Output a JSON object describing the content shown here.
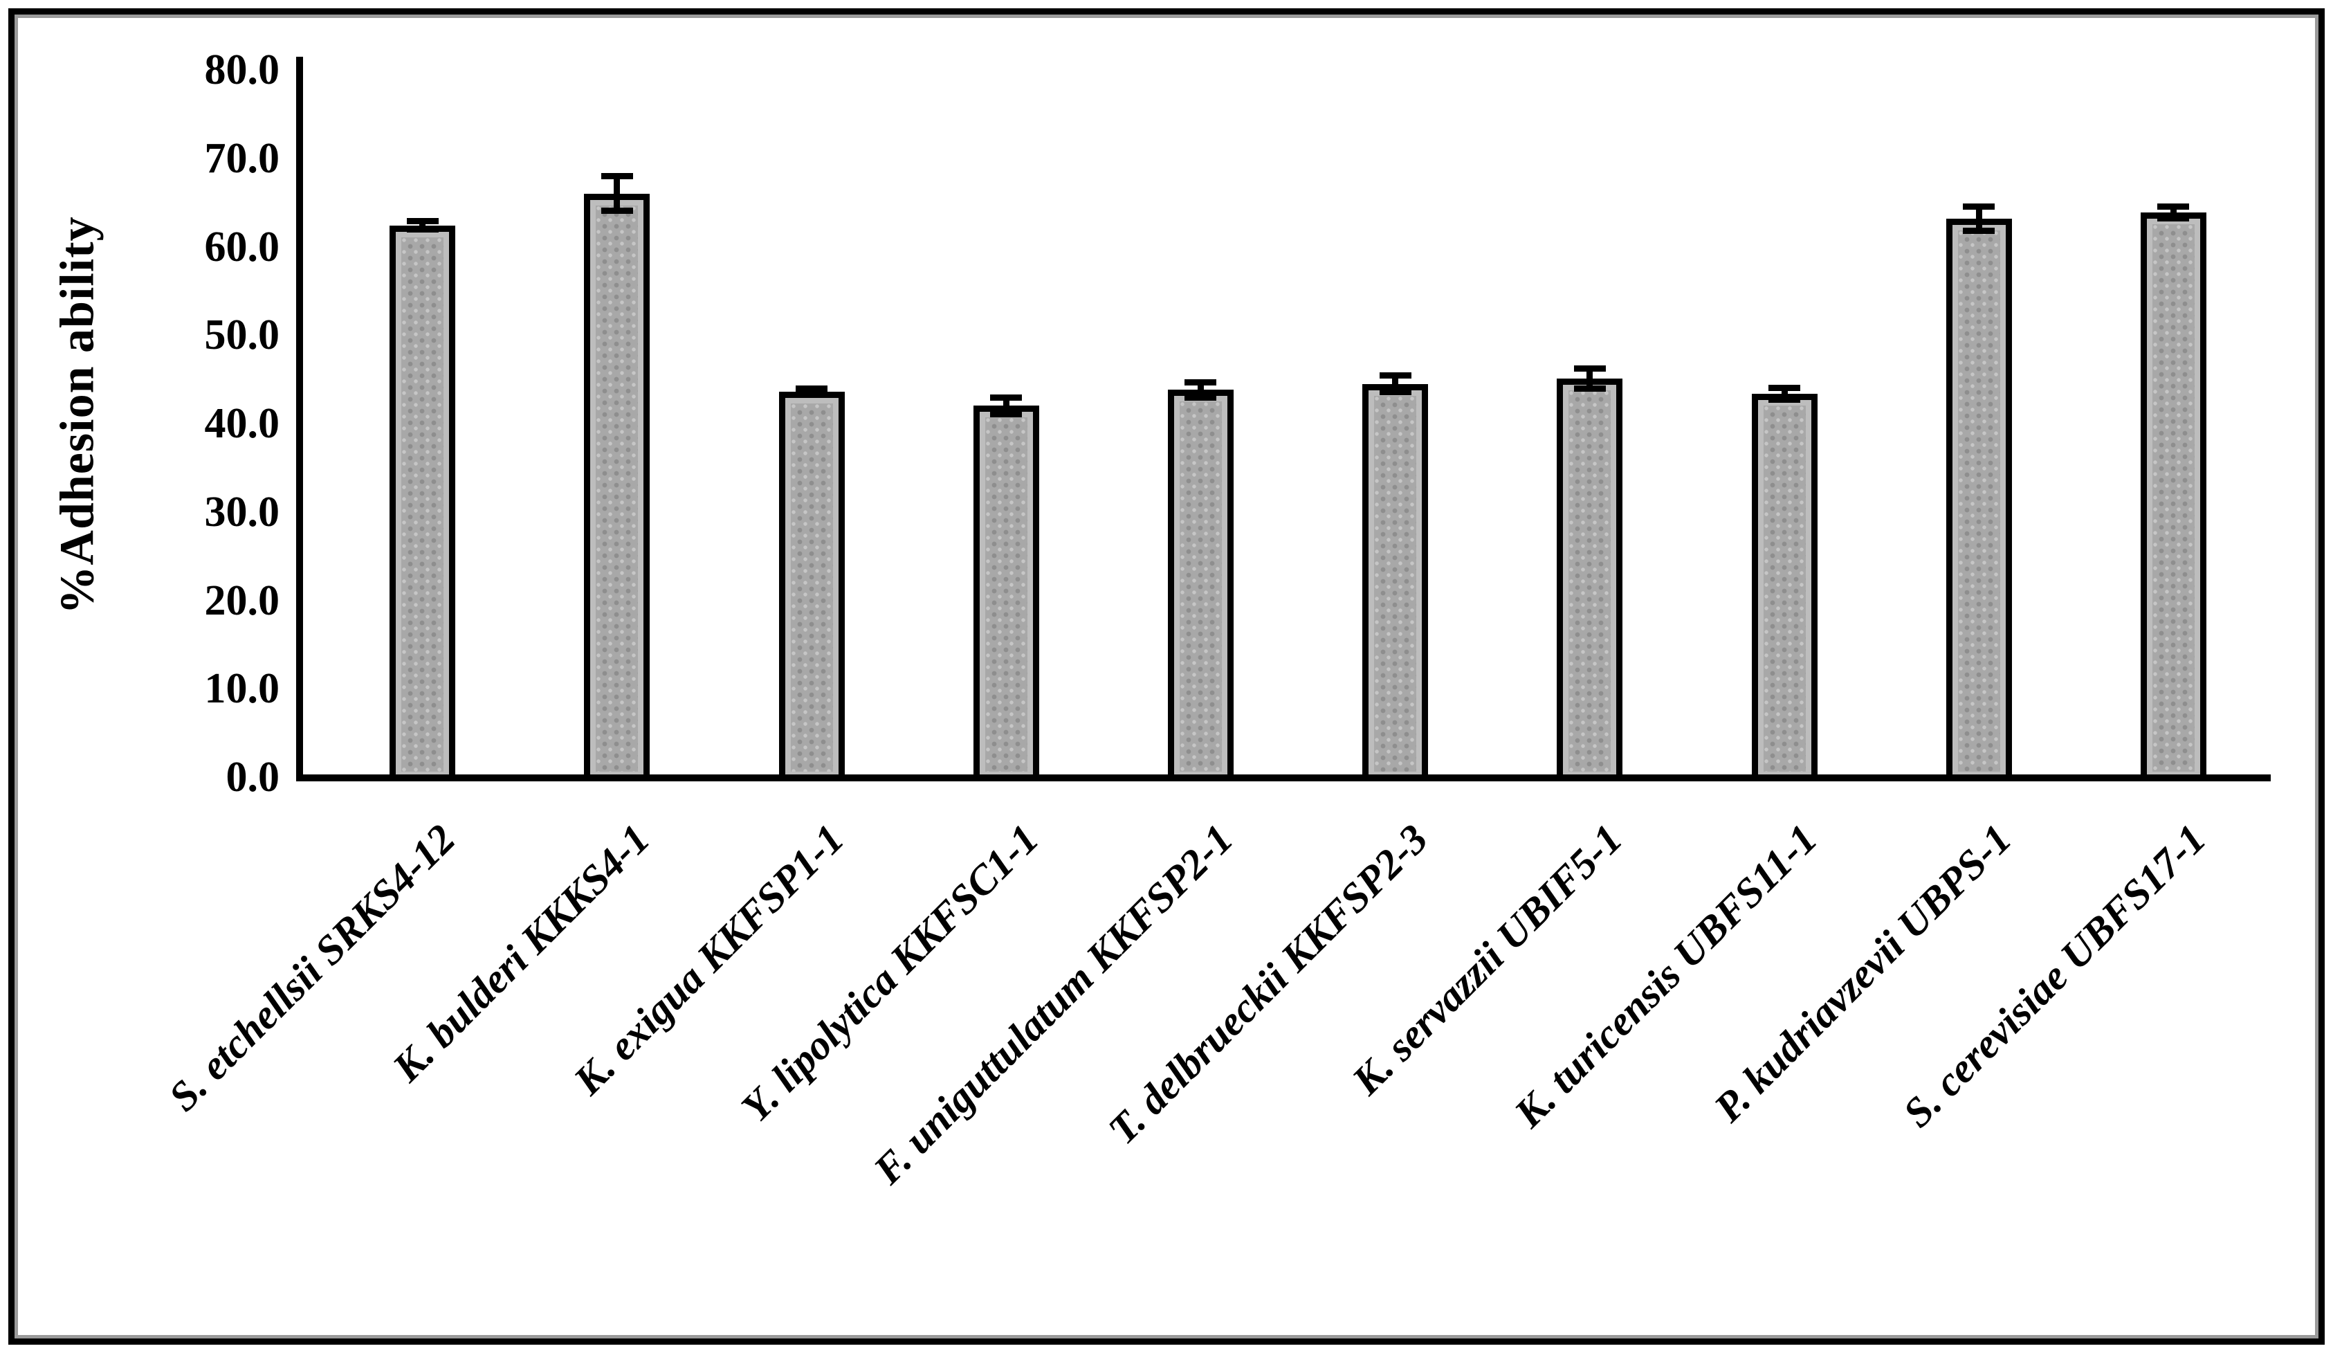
{
  "figure": {
    "background": "#ffffff",
    "frame_color": "#000000",
    "frame_shadow_color": "#9a9a9a"
  },
  "chart_data": {
    "type": "bar",
    "title": "",
    "ylabel": "%Adhesion ability",
    "xlabel": "",
    "ylim": [
      0,
      80
    ],
    "yticks": [
      0,
      10,
      20,
      30,
      40,
      50,
      60,
      70,
      80
    ],
    "ytick_labels": [
      "0.0",
      "10.0",
      "20.0",
      "30.0",
      "40.0",
      "50.0",
      "60.0",
      "70.0",
      "80.0"
    ],
    "grid": false,
    "legend": "none",
    "x_tick_rotation_deg": 45,
    "bar_fill_color": "#a8a8a8",
    "bar_dot_color": "#8e8e8e",
    "bar_border_color": "#000000",
    "error_bar_color": "#000000",
    "categories": [
      "S. etchellsii SRKS4-12",
      "K. bulderi KKKS4-1",
      "K. exigua KKFSP1-1",
      "Y. lipolytica KKFSC1-1",
      "F. uniguttulatum KKFSP2-1",
      "T. delbrueckii KKFSP2-3",
      "K. servazzii UBIF5-1",
      "K. turicensis UBFS11-1",
      "P. kudriavzevii UBPS-1",
      "S. cerevisiae UBFS17-1"
    ],
    "series": [
      {
        "name": "%Adhesion ability",
        "values": [
          62.4,
          66.0,
          43.6,
          42.0,
          43.8,
          44.5,
          45.1,
          43.4,
          63.2,
          63.9
        ],
        "errors": [
          0.5,
          2.0,
          0.4,
          1.0,
          0.9,
          1.0,
          1.2,
          0.7,
          1.4,
          0.7
        ]
      }
    ]
  }
}
